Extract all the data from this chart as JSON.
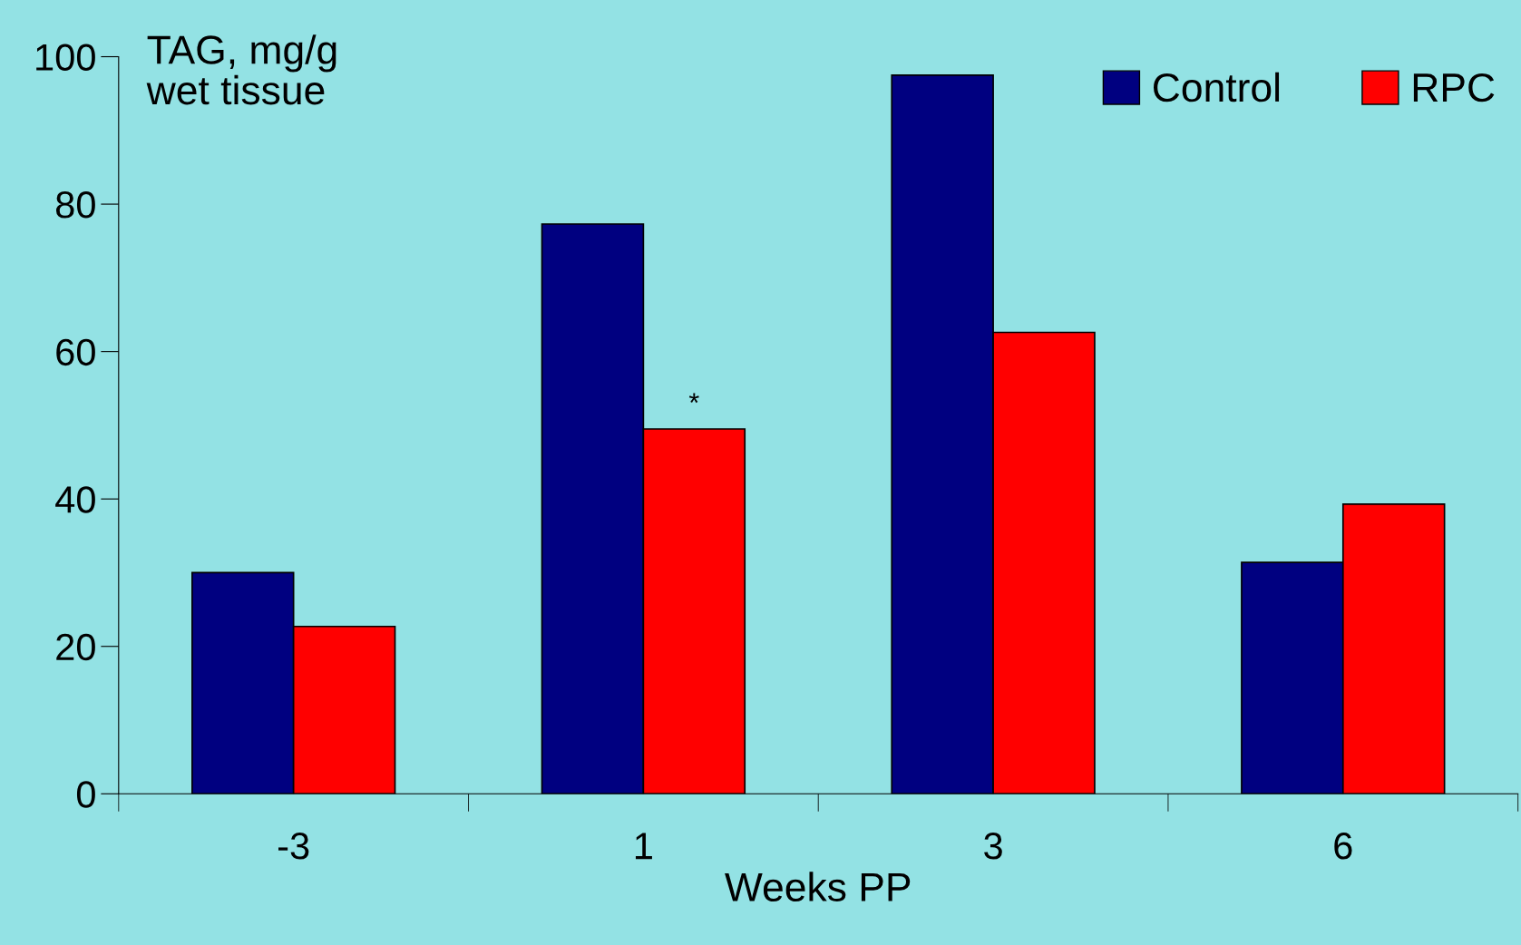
{
  "chart_data": {
    "type": "bar",
    "xlabel": "Weeks PP",
    "ylabel": "TAG, mg/g\nwet tissue",
    "categories": [
      "-3",
      "1",
      "3",
      "6"
    ],
    "series": [
      {
        "name": "Control",
        "color": "#000080",
        "values": [
          30,
          77.3,
          97.5,
          31.4
        ]
      },
      {
        "name": "RPC",
        "color": "#ff0000",
        "values": [
          22.7,
          49.5,
          62.6,
          39.3
        ]
      }
    ],
    "ylim": [
      0,
      100
    ],
    "yticks": [
      0,
      20,
      40,
      60,
      80,
      100
    ],
    "grid": false,
    "legend": "top right",
    "annotations": [
      {
        "text": "*",
        "x": "1",
        "y": 51
      }
    ]
  }
}
